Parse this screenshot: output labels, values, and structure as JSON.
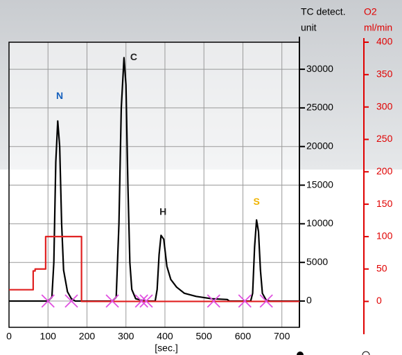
{
  "chart_data": {
    "type": "line",
    "x_label": "[sec.]",
    "y_label": [
      "TC detect.",
      "unit"
    ],
    "y2_label": [
      "O2",
      "ml/min"
    ],
    "xlim": [
      0,
      745
    ],
    "xticks": [
      0,
      100,
      200,
      300,
      400,
      500,
      600,
      700
    ],
    "ylim": [
      -3400,
      33500
    ],
    "yticks": [
      0,
      5000,
      10000,
      15000,
      20000,
      25000,
      30000
    ],
    "y2lim": [
      -40,
      400
    ],
    "y2ticks": [
      0,
      50,
      100,
      150,
      200,
      250,
      300,
      350,
      400
    ],
    "y2color": "#e00000",
    "grid": true,
    "series": [
      {
        "color": "#000000",
        "x": [
          0,
          100,
          110,
          115,
          120,
          125,
          130,
          135,
          140,
          150,
          160,
          170,
          265,
          275,
          282,
          288,
          295,
          300,
          305,
          310,
          315,
          325,
          340,
          350,
          375,
          380,
          385,
          390,
          397,
          405,
          415,
          430,
          450,
          480,
          520,
          560,
          565,
          620,
          625,
          630,
          635,
          640,
          645,
          650,
          660,
          670,
          745
        ],
        "values": [
          0,
          0,
          500,
          5000,
          18000,
          23300,
          20000,
          10000,
          4000,
          1200,
          300,
          0,
          0,
          500,
          10000,
          25000,
          31500,
          28000,
          15000,
          5000,
          1500,
          300,
          100,
          0,
          0,
          1500,
          6000,
          8500,
          8000,
          4500,
          2800,
          1800,
          1000,
          600,
          300,
          200,
          0,
          0,
          1000,
          7000,
          10500,
          9000,
          4000,
          1000,
          100,
          0,
          0
        ]
      },
      {
        "color": "#e02020",
        "axis": "y2",
        "x": [
          0,
          62,
          62,
          67,
          67,
          94,
          94,
          186,
          186,
          745
        ],
        "values": [
          18,
          18,
          47,
          47,
          50,
          50,
          100,
          100,
          0,
          0
        ]
      }
    ],
    "markers": {
      "color": "#e050e0",
      "x": [
        100,
        160,
        265,
        340,
        352,
        525,
        605,
        660
      ],
      "values": [
        0,
        0,
        0,
        0,
        0,
        0,
        0,
        0
      ]
    },
    "annotations": [
      {
        "text": "N",
        "x": 130,
        "y": 26500,
        "color": "#1560bd"
      },
      {
        "text": "C",
        "x": 320,
        "y": 31500,
        "color": "#222222"
      },
      {
        "text": "H",
        "x": 395,
        "y": 11500,
        "color": "#222222"
      },
      {
        "text": "S",
        "x": 635,
        "y": 12800,
        "color": "#f0b400"
      }
    ]
  }
}
